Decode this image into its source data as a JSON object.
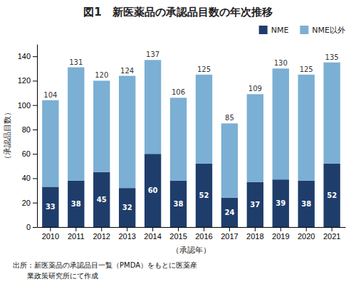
{
  "chart_data": {
    "type": "bar",
    "stacked": true,
    "title": "図1　新医薬品の承認品目数の年次推移",
    "xlabel": "（承認年）",
    "ylabel": "（承認品目数）",
    "categories": [
      "2010",
      "2011",
      "2012",
      "2013",
      "2014",
      "2015",
      "2016",
      "2017",
      "2018",
      "2019",
      "2020",
      "2021"
    ],
    "series": [
      {
        "name": "NME",
        "color": "#1f3d6b",
        "data_labels": true,
        "values": [
          33,
          38,
          45,
          32,
          60,
          38,
          52,
          24,
          37,
          39,
          38,
          52
        ]
      },
      {
        "name": "NME以外",
        "color": "#7bafd4",
        "values": [
          71,
          93,
          75,
          92,
          77,
          68,
          73,
          61,
          72,
          91,
          87,
          83
        ]
      }
    ],
    "totals": [
      104,
      131,
      120,
      124,
      137,
      106,
      125,
      85,
      109,
      130,
      125,
      135
    ],
    "ylim": [
      0,
      150
    ],
    "yticks": [
      0,
      20,
      40,
      60,
      80,
      100,
      120,
      140
    ],
    "grid": false,
    "legend": "upper right",
    "annotations": [
      "出所：新医薬品の承認品目一覧（PMDA）をもとに医薬産",
      "　　業政策研究所にて作成"
    ]
  }
}
